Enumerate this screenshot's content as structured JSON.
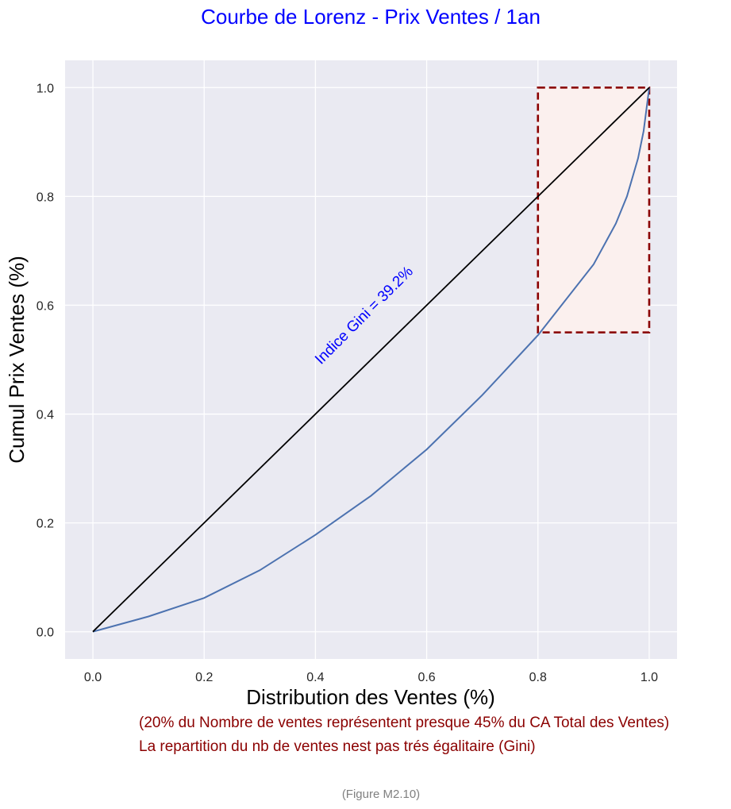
{
  "chart_data": {
    "type": "line",
    "title": "Courbe de Lorenz - Prix Ventes / 1an",
    "xlabel": "Distribution des Ventes (%)",
    "ylabel": "Cumul Prix Ventes (%)",
    "xlim": [
      -0.05,
      1.05
    ],
    "ylim": [
      -0.05,
      1.05
    ],
    "xticks": [
      0.0,
      0.2,
      0.4,
      0.6,
      0.8,
      1.0
    ],
    "xtick_labels": [
      "0.0",
      "0.2",
      "0.4",
      "0.6",
      "0.8",
      "1.0"
    ],
    "yticks": [
      0.0,
      0.2,
      0.4,
      0.6,
      0.8,
      1.0
    ],
    "ytick_labels": [
      "0.0",
      "0.2",
      "0.4",
      "0.6",
      "0.8",
      "1.0"
    ],
    "grid": true,
    "background": "#eaeaf2",
    "series": [
      {
        "color": "#4c72b0",
        "x": [
          0.0,
          0.1,
          0.2,
          0.3,
          0.4,
          0.5,
          0.6,
          0.7,
          0.8,
          0.9,
          0.94,
          0.96,
          0.98,
          0.99,
          1.0
        ],
        "y": [
          0.0,
          0.028,
          0.062,
          0.113,
          0.178,
          0.25,
          0.335,
          0.435,
          0.545,
          0.675,
          0.75,
          0.8,
          0.87,
          0.92,
          1.0
        ]
      },
      {
        "color": "#000000",
        "x": [
          0.0,
          1.0
        ],
        "y": [
          0.0,
          1.0
        ]
      }
    ],
    "highlight_box": {
      "x": [
        0.8,
        1.0
      ],
      "y": [
        0.55,
        1.0
      ],
      "edge_color": "#8b0000",
      "fill_color": "#fbf0ee",
      "style": "dashed"
    },
    "annotations": [
      {
        "text": "Indice Gini = 39.2%",
        "x": 0.41,
        "y": 0.49,
        "rotation": 45,
        "color": "#0000ff"
      }
    ]
  },
  "notes": {
    "line1": "(20% du Nombre de ventes représentent presque 45% du CA Total des Ventes)",
    "line2": "La repartition du nb de ventes nest pas trés égalitaire  (Gini)"
  },
  "figure_label": "(Figure M2.10)"
}
